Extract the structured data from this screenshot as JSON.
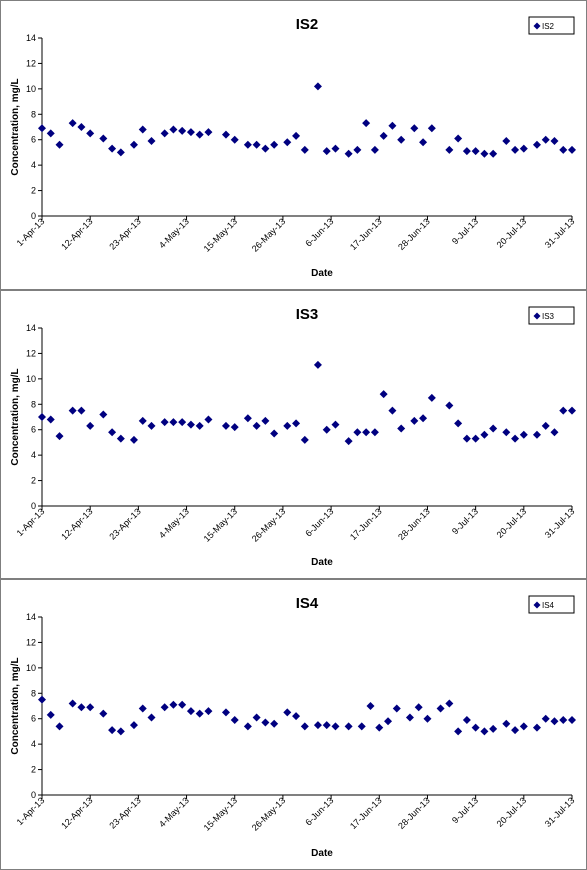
{
  "chart_data": [
    {
      "type": "scatter",
      "title": "IS2",
      "xlabel": "Date",
      "ylabel": "Concentration, mg/L",
      "ylim": [
        0,
        14
      ],
      "yticks": [
        "0",
        "2",
        "4",
        "6",
        "8",
        "10",
        "12",
        "14"
      ],
      "xlim": [
        "2013-04-01",
        "2013-07-31"
      ],
      "xticks": [
        {
          "date": "2013-04-01",
          "label": "1-Apr-13"
        },
        {
          "date": "2013-04-12",
          "label": "12-Apr-13"
        },
        {
          "date": "2013-04-23",
          "label": "23-Apr-13"
        },
        {
          "date": "2013-05-04",
          "label": "4-May-13"
        },
        {
          "date": "2013-05-15",
          "label": "15-May-13"
        },
        {
          "date": "2013-05-26",
          "label": "26-May-13"
        },
        {
          "date": "2013-06-06",
          "label": "6-Jun-13"
        },
        {
          "date": "2013-06-17",
          "label": "17-Jun-13"
        },
        {
          "date": "2013-06-28",
          "label": "28-Jun-13"
        },
        {
          "date": "2013-07-09",
          "label": "9-Jul-13"
        },
        {
          "date": "2013-07-20",
          "label": "20-Jul-13"
        },
        {
          "date": "2013-07-31",
          "label": "31-Jul-13"
        }
      ],
      "grid": false,
      "legend": "top-right",
      "marker_color": "#000080",
      "series": [
        {
          "name": "IS2",
          "x": [
            "2013-04-01",
            "2013-04-03",
            "2013-04-05",
            "2013-04-08",
            "2013-04-10",
            "2013-04-12",
            "2013-04-15",
            "2013-04-17",
            "2013-04-19",
            "2013-04-22",
            "2013-04-24",
            "2013-04-26",
            "2013-04-29",
            "2013-05-01",
            "2013-05-03",
            "2013-05-05",
            "2013-05-07",
            "2013-05-09",
            "2013-05-13",
            "2013-05-15",
            "2013-05-18",
            "2013-05-20",
            "2013-05-22",
            "2013-05-24",
            "2013-05-27",
            "2013-05-29",
            "2013-05-31",
            "2013-06-03",
            "2013-06-05",
            "2013-06-07",
            "2013-06-10",
            "2013-06-12",
            "2013-06-14",
            "2013-06-16",
            "2013-06-18",
            "2013-06-20",
            "2013-06-22",
            "2013-06-25",
            "2013-06-27",
            "2013-06-29",
            "2013-07-03",
            "2013-07-05",
            "2013-07-07",
            "2013-07-09",
            "2013-07-11",
            "2013-07-13",
            "2013-07-16",
            "2013-07-18",
            "2013-07-20",
            "2013-07-23",
            "2013-07-25",
            "2013-07-27",
            "2013-07-29",
            "2013-07-31"
          ],
          "y": [
            6.9,
            6.5,
            5.6,
            7.3,
            7.0,
            6.5,
            6.1,
            5.3,
            5.0,
            5.6,
            6.8,
            5.9,
            6.5,
            6.8,
            6.7,
            6.6,
            6.4,
            6.6,
            6.4,
            6.0,
            5.6,
            5.6,
            5.3,
            5.6,
            5.8,
            6.3,
            5.2,
            10.2,
            5.1,
            5.3,
            4.9,
            5.2,
            7.3,
            5.2,
            6.3,
            7.1,
            6.0,
            6.9,
            5.8,
            6.9,
            5.2,
            6.1,
            5.1,
            5.1,
            4.9,
            4.9,
            5.9,
            5.2,
            5.3,
            5.6,
            6.0,
            5.9,
            5.2,
            5.2
          ]
        }
      ]
    },
    {
      "type": "scatter",
      "title": "IS3",
      "xlabel": "Date",
      "ylabel": "Concentration, mg/L",
      "ylim": [
        0,
        14
      ],
      "yticks": [
        "0",
        "2",
        "4",
        "6",
        "8",
        "10",
        "12",
        "14"
      ],
      "xlim": [
        "2013-04-01",
        "2013-07-31"
      ],
      "xticks": [
        {
          "date": "2013-04-01",
          "label": "1-Apr-13"
        },
        {
          "date": "2013-04-12",
          "label": "12-Apr-13"
        },
        {
          "date": "2013-04-23",
          "label": "23-Apr-13"
        },
        {
          "date": "2013-05-04",
          "label": "4-May-13"
        },
        {
          "date": "2013-05-15",
          "label": "15-May-13"
        },
        {
          "date": "2013-05-26",
          "label": "26-May-13"
        },
        {
          "date": "2013-06-06",
          "label": "6-Jun-13"
        },
        {
          "date": "2013-06-17",
          "label": "17-Jun-13"
        },
        {
          "date": "2013-06-28",
          "label": "28-Jun-13"
        },
        {
          "date": "2013-07-09",
          "label": "9-Jul-13"
        },
        {
          "date": "2013-07-20",
          "label": "20-Jul-13"
        },
        {
          "date": "2013-07-31",
          "label": "31-Jul-13"
        }
      ],
      "grid": false,
      "legend": "top-right",
      "marker_color": "#000080",
      "series": [
        {
          "name": "IS3",
          "x": [
            "2013-04-01",
            "2013-04-03",
            "2013-04-05",
            "2013-04-08",
            "2013-04-10",
            "2013-04-12",
            "2013-04-15",
            "2013-04-17",
            "2013-04-19",
            "2013-04-22",
            "2013-04-24",
            "2013-04-26",
            "2013-04-29",
            "2013-05-01",
            "2013-05-03",
            "2013-05-05",
            "2013-05-07",
            "2013-05-09",
            "2013-05-13",
            "2013-05-15",
            "2013-05-18",
            "2013-05-20",
            "2013-05-22",
            "2013-05-24",
            "2013-05-27",
            "2013-05-29",
            "2013-05-31",
            "2013-06-03",
            "2013-06-05",
            "2013-06-07",
            "2013-06-10",
            "2013-06-12",
            "2013-06-14",
            "2013-06-16",
            "2013-06-18",
            "2013-06-20",
            "2013-06-22",
            "2013-06-25",
            "2013-06-27",
            "2013-06-29",
            "2013-07-03",
            "2013-07-05",
            "2013-07-07",
            "2013-07-09",
            "2013-07-11",
            "2013-07-13",
            "2013-07-16",
            "2013-07-18",
            "2013-07-20",
            "2013-07-23",
            "2013-07-25",
            "2013-07-27",
            "2013-07-29",
            "2013-07-31"
          ],
          "y": [
            7.0,
            6.8,
            5.5,
            7.5,
            7.5,
            6.3,
            7.2,
            5.8,
            5.3,
            5.2,
            6.7,
            6.3,
            6.6,
            6.6,
            6.6,
            6.4,
            6.3,
            6.8,
            6.3,
            6.2,
            6.9,
            6.3,
            6.7,
            5.7,
            6.3,
            6.5,
            5.2,
            11.1,
            6.0,
            6.4,
            5.1,
            5.8,
            5.8,
            5.8,
            8.8,
            7.5,
            6.1,
            6.7,
            6.9,
            8.5,
            7.9,
            6.5,
            5.3,
            5.3,
            5.6,
            6.1,
            5.8,
            5.3,
            5.6,
            5.6,
            6.3,
            5.8,
            7.5,
            7.5
          ]
        }
      ]
    },
    {
      "type": "scatter",
      "title": "IS4",
      "xlabel": "Date",
      "ylabel": "Concentration, mg/L",
      "ylim": [
        0,
        14
      ],
      "yticks": [
        "0",
        "2",
        "4",
        "6",
        "8",
        "10",
        "12",
        "14"
      ],
      "xlim": [
        "2013-04-01",
        "2013-07-31"
      ],
      "xticks": [
        {
          "date": "2013-04-01",
          "label": "1-Apr-13"
        },
        {
          "date": "2013-04-12",
          "label": "12-Apr-13"
        },
        {
          "date": "2013-04-23",
          "label": "23-Apr-13"
        },
        {
          "date": "2013-05-04",
          "label": "4-May-13"
        },
        {
          "date": "2013-05-15",
          "label": "15-May-13"
        },
        {
          "date": "2013-05-26",
          "label": "26-May-13"
        },
        {
          "date": "2013-06-06",
          "label": "6-Jun-13"
        },
        {
          "date": "2013-06-17",
          "label": "17-Jun-13"
        },
        {
          "date": "2013-06-28",
          "label": "28-Jun-13"
        },
        {
          "date": "2013-07-09",
          "label": "9-Jul-13"
        },
        {
          "date": "2013-07-20",
          "label": "20-Jul-13"
        },
        {
          "date": "2013-07-31",
          "label": "31-Jul-13"
        }
      ],
      "grid": false,
      "legend": "top-right",
      "marker_color": "#000080",
      "series": [
        {
          "name": "IS4",
          "x": [
            "2013-04-01",
            "2013-04-03",
            "2013-04-05",
            "2013-04-08",
            "2013-04-10",
            "2013-04-12",
            "2013-04-15",
            "2013-04-17",
            "2013-04-19",
            "2013-04-22",
            "2013-04-24",
            "2013-04-26",
            "2013-04-29",
            "2013-05-01",
            "2013-05-03",
            "2013-05-05",
            "2013-05-07",
            "2013-05-09",
            "2013-05-13",
            "2013-05-15",
            "2013-05-18",
            "2013-05-20",
            "2013-05-22",
            "2013-05-24",
            "2013-05-27",
            "2013-05-29",
            "2013-05-31",
            "2013-06-03",
            "2013-06-05",
            "2013-06-07",
            "2013-06-10",
            "2013-06-13",
            "2013-06-15",
            "2013-06-17",
            "2013-06-19",
            "2013-06-21",
            "2013-06-24",
            "2013-06-26",
            "2013-06-28",
            "2013-07-01",
            "2013-07-03",
            "2013-07-05",
            "2013-07-07",
            "2013-07-09",
            "2013-07-11",
            "2013-07-13",
            "2013-07-16",
            "2013-07-18",
            "2013-07-20",
            "2013-07-23",
            "2013-07-25",
            "2013-07-27",
            "2013-07-29",
            "2013-07-31"
          ],
          "y": [
            7.5,
            6.3,
            5.4,
            7.2,
            6.9,
            6.9,
            6.4,
            5.1,
            5.0,
            5.5,
            6.8,
            6.1,
            6.9,
            7.1,
            7.1,
            6.6,
            6.4,
            6.6,
            6.5,
            5.9,
            5.4,
            6.1,
            5.7,
            5.6,
            6.5,
            6.2,
            5.4,
            5.5,
            5.5,
            5.4,
            5.4,
            5.4,
            7.0,
            5.3,
            5.8,
            6.8,
            6.1,
            6.9,
            6.0,
            6.8,
            7.2,
            5.0,
            5.9,
            5.3,
            5.0,
            5.2,
            5.6,
            5.1,
            5.4,
            5.3,
            6.0,
            5.8,
            5.9,
            5.9
          ]
        }
      ]
    }
  ]
}
